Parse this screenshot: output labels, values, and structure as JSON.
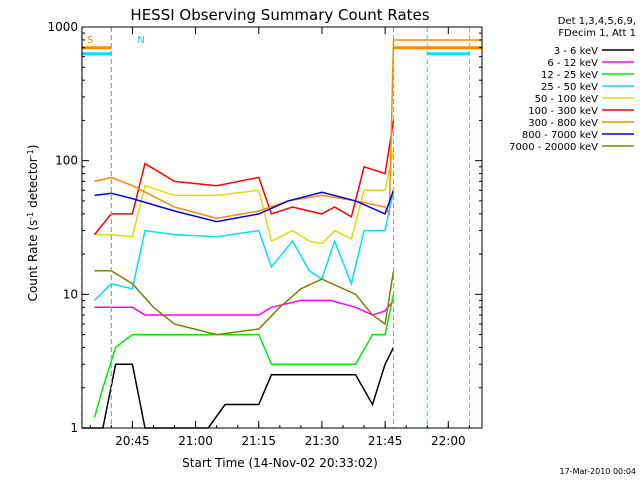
{
  "chart_data": {
    "type": "line",
    "title": "HESSI Observing Summary Count Rates",
    "xlabel": "Start Time (14-Nov-02 20:33:02)",
    "ylabel_main": "Count Rate (s",
    "ylabel_sup1": "-1",
    "ylabel_mid": " detector",
    "ylabel_sup2": "-1",
    "ylabel_end": ")",
    "yscale": "log",
    "xlim": [
      "20:33:02",
      "22:08:00"
    ],
    "ylim": [
      1,
      1000
    ],
    "x_ticks": [
      "20:45",
      "21:00",
      "21:15",
      "21:30",
      "21:45",
      "22:00"
    ],
    "y_ticks": [
      "1",
      "10",
      "100",
      "1000"
    ],
    "legend_header": [
      "Det 1,3,4,5,6,9,",
      "FDecim 1, Att 1"
    ],
    "legend_position": "outside-right",
    "timestamp": "17-Mar-2010 00:04",
    "flag_labels": [
      {
        "text": "S",
        "color": "#ff8800"
      },
      {
        "text": "N",
        "color": "#00e0ff"
      }
    ],
    "series": [
      {
        "name": "3 - 6 keV",
        "color": "#000000",
        "points": [
          [
            "20:33",
            1
          ],
          [
            "20:38",
            1
          ],
          [
            "20:41",
            3
          ],
          [
            "20:45",
            3
          ],
          [
            "20:48",
            1
          ],
          [
            "21:03",
            1
          ],
          [
            "21:07",
            1.5
          ],
          [
            "21:15",
            1.5
          ],
          [
            "21:18",
            2.5
          ],
          [
            "21:30",
            2.5
          ],
          [
            "21:38",
            2.5
          ],
          [
            "21:42",
            1.5
          ],
          [
            "21:45",
            3
          ],
          [
            "21:47",
            4
          ]
        ]
      },
      {
        "name": "6 - 12 keV",
        "color": "#ff00ff",
        "points": [
          [
            "20:36",
            8
          ],
          [
            "20:40",
            8
          ],
          [
            "20:45",
            8
          ],
          [
            "20:48",
            7
          ],
          [
            "21:15",
            7
          ],
          [
            "21:18",
            8
          ],
          [
            "21:25",
            9
          ],
          [
            "21:32",
            9
          ],
          [
            "21:38",
            8
          ],
          [
            "21:42",
            7
          ],
          [
            "21:45",
            7.5
          ],
          [
            "21:47",
            9
          ]
        ]
      },
      {
        "name": "12 - 25 keV",
        "color": "#00ee00",
        "points": [
          [
            "20:36",
            1.2
          ],
          [
            "20:38",
            2
          ],
          [
            "20:41",
            4
          ],
          [
            "20:45",
            5
          ],
          [
            "20:48",
            5
          ],
          [
            "21:15",
            5
          ],
          [
            "21:18",
            3
          ],
          [
            "21:30",
            3
          ],
          [
            "21:38",
            3
          ],
          [
            "21:42",
            5
          ],
          [
            "21:45",
            5
          ],
          [
            "21:47",
            10
          ]
        ]
      },
      {
        "name": "25 - 50 keV",
        "color": "#00e0ff",
        "points": [
          [
            "20:36",
            9
          ],
          [
            "20:40",
            12
          ],
          [
            "20:45",
            11
          ],
          [
            "20:48",
            30
          ],
          [
            "20:55",
            28
          ],
          [
            "21:05",
            27
          ],
          [
            "21:15",
            30
          ],
          [
            "21:18",
            16
          ],
          [
            "21:23",
            25
          ],
          [
            "21:27",
            15
          ],
          [
            "21:30",
            13
          ],
          [
            "21:33",
            25
          ],
          [
            "21:37",
            12
          ],
          [
            "21:40",
            30
          ],
          [
            "21:45",
            30
          ],
          [
            "21:47",
            60
          ]
        ]
      },
      {
        "name": "50 - 100 keV",
        "color": "#dddd00",
        "points": [
          [
            "20:36",
            28
          ],
          [
            "20:40",
            28
          ],
          [
            "20:45",
            27
          ],
          [
            "20:48",
            65
          ],
          [
            "20:55",
            55
          ],
          [
            "21:05",
            55
          ],
          [
            "21:15",
            60
          ],
          [
            "21:18",
            25
          ],
          [
            "21:23",
            30
          ],
          [
            "21:27",
            25
          ],
          [
            "21:30",
            24
          ],
          [
            "21:33",
            30
          ],
          [
            "21:37",
            26
          ],
          [
            "21:40",
            60
          ],
          [
            "21:45",
            60
          ],
          [
            "21:47",
            120
          ]
        ]
      },
      {
        "name": "100 - 300 keV",
        "color": "#ff0000",
        "points": [
          [
            "20:36",
            28
          ],
          [
            "20:40",
            40
          ],
          [
            "20:45",
            40
          ],
          [
            "20:48",
            95
          ],
          [
            "20:55",
            70
          ],
          [
            "21:05",
            65
          ],
          [
            "21:15",
            75
          ],
          [
            "21:18",
            40
          ],
          [
            "21:23",
            45
          ],
          [
            "21:27",
            42
          ],
          [
            "21:30",
            40
          ],
          [
            "21:33",
            45
          ],
          [
            "21:37",
            38
          ],
          [
            "21:40",
            90
          ],
          [
            "21:45",
            80
          ],
          [
            "21:47",
            200
          ]
        ]
      },
      {
        "name": "300 - 800 keV",
        "color": "#ff8800",
        "points": [
          [
            "20:36",
            70
          ],
          [
            "20:40",
            75
          ],
          [
            "20:45",
            65
          ],
          [
            "20:55",
            45
          ],
          [
            "21:05",
            37
          ],
          [
            "21:15",
            42
          ],
          [
            "21:22",
            50
          ],
          [
            "21:30",
            55
          ],
          [
            "21:38",
            50
          ],
          [
            "21:45",
            45
          ],
          [
            "21:46",
            40
          ],
          [
            "21:47",
            800
          ],
          [
            "22:08",
            800
          ]
        ]
      },
      {
        "name": "800 - 7000 keV",
        "color": "#0000ff",
        "points": [
          [
            "20:36",
            55
          ],
          [
            "20:40",
            57
          ],
          [
            "20:45",
            52
          ],
          [
            "20:55",
            42
          ],
          [
            "21:05",
            35
          ],
          [
            "21:15",
            40
          ],
          [
            "21:22",
            50
          ],
          [
            "21:30",
            58
          ],
          [
            "21:38",
            50
          ],
          [
            "21:45",
            40
          ],
          [
            "21:47",
            60
          ]
        ]
      },
      {
        "name": "7000 - 20000 keV",
        "color": "#808000",
        "points": [
          [
            "20:36",
            15
          ],
          [
            "20:40",
            15
          ],
          [
            "20:45",
            12
          ],
          [
            "20:50",
            8
          ],
          [
            "20:55",
            6
          ],
          [
            "21:05",
            5
          ],
          [
            "21:15",
            5.5
          ],
          [
            "21:20",
            8
          ],
          [
            "21:25",
            11
          ],
          [
            "21:30",
            13
          ],
          [
            "21:38",
            10
          ],
          [
            "21:42",
            7
          ],
          [
            "21:45",
            6
          ],
          [
            "21:47",
            15
          ]
        ]
      }
    ],
    "flags": [
      {
        "name": "S",
        "color": "#ff8800",
        "segments": [
          [
            "20:33",
            "20:40"
          ],
          [
            "21:47",
            "22:08"
          ]
        ]
      },
      {
        "name": "N",
        "color": "#00e0ff",
        "segments": [
          [
            "20:33",
            "20:40"
          ],
          [
            "21:55",
            "22:05"
          ]
        ]
      }
    ]
  }
}
